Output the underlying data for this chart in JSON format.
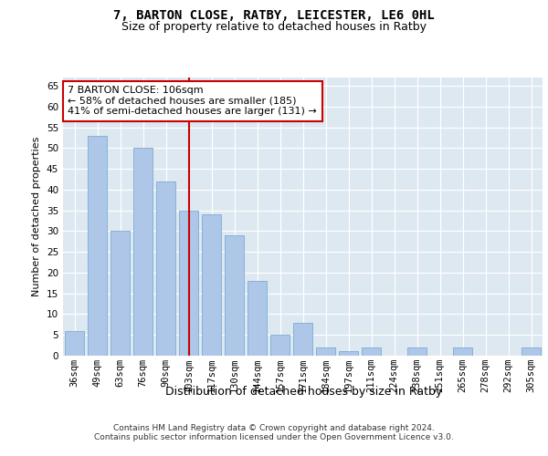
{
  "title1": "7, BARTON CLOSE, RATBY, LEICESTER, LE6 0HL",
  "title2": "Size of property relative to detached houses in Ratby",
  "xlabel": "Distribution of detached houses by size in Ratby",
  "ylabel": "Number of detached properties",
  "categories": [
    "36sqm",
    "49sqm",
    "63sqm",
    "76sqm",
    "90sqm",
    "103sqm",
    "117sqm",
    "130sqm",
    "144sqm",
    "157sqm",
    "171sqm",
    "184sqm",
    "197sqm",
    "211sqm",
    "224sqm",
    "238sqm",
    "251sqm",
    "265sqm",
    "278sqm",
    "292sqm",
    "305sqm"
  ],
  "values": [
    6,
    53,
    30,
    50,
    42,
    35,
    34,
    29,
    18,
    5,
    8,
    2,
    1,
    2,
    0,
    2,
    0,
    2,
    0,
    0,
    2
  ],
  "bar_color": "#aec6e8",
  "bar_edge_color": "#7aadd4",
  "vline_x_index": 5,
  "vline_color": "#cc0000",
  "annotation_text": "7 BARTON CLOSE: 106sqm\n← 58% of detached houses are smaller (185)\n41% of semi-detached houses are larger (131) →",
  "annotation_box_color": "#ffffff",
  "annotation_box_edge_color": "#cc0000",
  "ylim": [
    0,
    67
  ],
  "yticks": [
    0,
    5,
    10,
    15,
    20,
    25,
    30,
    35,
    40,
    45,
    50,
    55,
    60,
    65
  ],
  "background_color": "#dde8f0",
  "footer_text": "Contains HM Land Registry data © Crown copyright and database right 2024.\nContains public sector information licensed under the Open Government Licence v3.0.",
  "title1_fontsize": 10,
  "title2_fontsize": 9,
  "xlabel_fontsize": 9,
  "ylabel_fontsize": 8,
  "tick_fontsize": 7.5,
  "annotation_fontsize": 8,
  "footer_fontsize": 6.5
}
